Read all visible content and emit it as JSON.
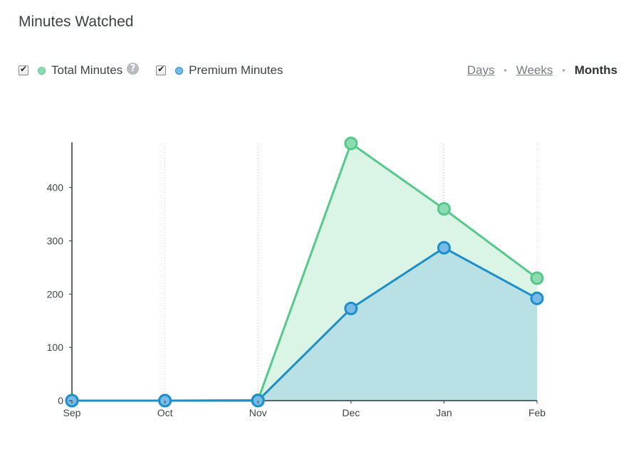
{
  "page": {
    "title": "Minutes Watched"
  },
  "legend": {
    "items": [
      {
        "label": "Total Minutes",
        "checked": true,
        "color": "#5ccd92",
        "has_help": true,
        "help_glyph": "?"
      },
      {
        "label": "Premium Minutes",
        "checked": true,
        "color": "#1a8fcb",
        "has_help": false
      }
    ]
  },
  "range": {
    "options": [
      {
        "label": "Days",
        "active": false
      },
      {
        "label": "Weeks",
        "active": false
      },
      {
        "label": "Months",
        "active": true
      }
    ],
    "separator": "•"
  },
  "chart_data": {
    "type": "area",
    "categories": [
      "Sep",
      "Oct",
      "Nov",
      "Dec",
      "Jan",
      "Feb"
    ],
    "series": [
      {
        "name": "Total Minutes",
        "values": [
          0,
          0,
          1,
          483,
          360,
          230
        ],
        "line_color": "#55c98b",
        "fill_color": "#daf4e5",
        "point_color": "#8ddcb1"
      },
      {
        "name": "Premium Minutes",
        "values": [
          0,
          0,
          0,
          173,
          287,
          192
        ],
        "line_color": "#1c8ec9",
        "fill_color": "#b9e1e5",
        "point_color": "#79b9e6"
      }
    ],
    "yticks": [
      0,
      100,
      200,
      300,
      400
    ],
    "ylim": [
      0,
      485
    ],
    "xlabel": "",
    "ylabel": "",
    "grid": "vertical-dotted"
  }
}
